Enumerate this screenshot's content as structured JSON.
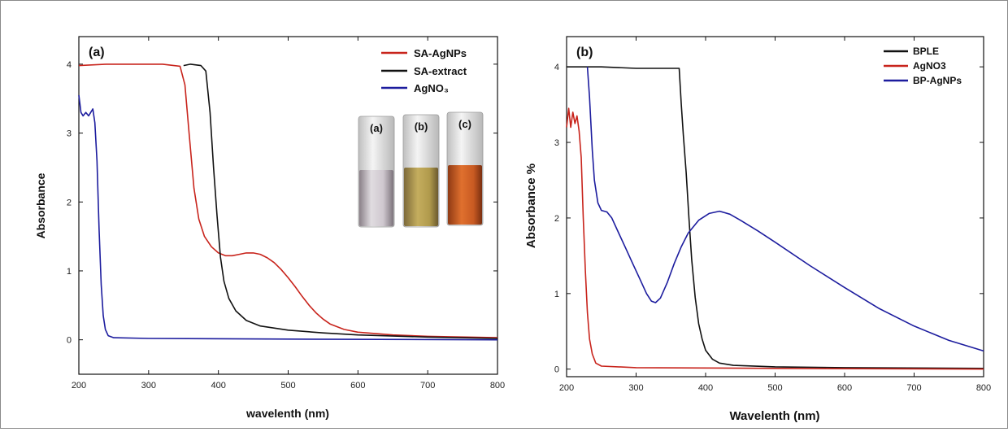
{
  "colors": {
    "red": "#c8241c",
    "black": "#111111",
    "blue": "#1c1c9e"
  },
  "chart_data": [
    {
      "type": "line",
      "panel_label": "(a)",
      "xlabel": "wavelenth (nm)",
      "ylabel": "Absorbance",
      "xlim": [
        200,
        800
      ],
      "ylim": [
        -0.5,
        4.4
      ],
      "xticks": [
        "200",
        "300",
        "400",
        "500",
        "600",
        "700",
        "800"
      ],
      "yticks": [
        "0",
        "1",
        "2",
        "3",
        "4"
      ],
      "legend_position": "top-right",
      "series": [
        {
          "name": "SA-AgNPs",
          "color": "#c8241c",
          "points": [
            [
              200,
              3.98
            ],
            [
              240,
              4.0
            ],
            [
              280,
              4.0
            ],
            [
              320,
              4.0
            ],
            [
              345,
              3.97
            ],
            [
              352,
              3.7
            ],
            [
              358,
              3.0
            ],
            [
              365,
              2.2
            ],
            [
              372,
              1.75
            ],
            [
              380,
              1.5
            ],
            [
              390,
              1.35
            ],
            [
              400,
              1.26
            ],
            [
              410,
              1.22
            ],
            [
              420,
              1.22
            ],
            [
              430,
              1.24
            ],
            [
              440,
              1.26
            ],
            [
              450,
              1.26
            ],
            [
              460,
              1.24
            ],
            [
              470,
              1.19
            ],
            [
              480,
              1.12
            ],
            [
              490,
              1.02
            ],
            [
              500,
              0.9
            ],
            [
              510,
              0.77
            ],
            [
              520,
              0.63
            ],
            [
              530,
              0.5
            ],
            [
              540,
              0.39
            ],
            [
              550,
              0.3
            ],
            [
              560,
              0.23
            ],
            [
              580,
              0.15
            ],
            [
              600,
              0.11
            ],
            [
              650,
              0.07
            ],
            [
              700,
              0.05
            ],
            [
              800,
              0.03
            ]
          ]
        },
        {
          "name": "SA-extract",
          "color": "#111111",
          "points": [
            [
              350,
              3.98
            ],
            [
              360,
              4.0
            ],
            [
              375,
              3.98
            ],
            [
              382,
              3.9
            ],
            [
              388,
              3.3
            ],
            [
              393,
              2.5
            ],
            [
              398,
              1.8
            ],
            [
              403,
              1.2
            ],
            [
              408,
              0.85
            ],
            [
              415,
              0.6
            ],
            [
              425,
              0.42
            ],
            [
              440,
              0.28
            ],
            [
              460,
              0.2
            ],
            [
              500,
              0.14
            ],
            [
              550,
              0.1
            ],
            [
              600,
              0.07
            ],
            [
              700,
              0.04
            ],
            [
              800,
              0.02
            ]
          ]
        },
        {
          "name": "AgNO₃",
          "color": "#1c1c9e",
          "points": [
            [
              200,
              3.55
            ],
            [
              203,
              3.3
            ],
            [
              206,
              3.25
            ],
            [
              210,
              3.3
            ],
            [
              214,
              3.25
            ],
            [
              217,
              3.3
            ],
            [
              220,
              3.35
            ],
            [
              223,
              3.15
            ],
            [
              226,
              2.6
            ],
            [
              229,
              1.6
            ],
            [
              232,
              0.8
            ],
            [
              235,
              0.35
            ],
            [
              238,
              0.15
            ],
            [
              242,
              0.06
            ],
            [
              250,
              0.03
            ],
            [
              300,
              0.02
            ],
            [
              500,
              0.01
            ],
            [
              800,
              0.0
            ]
          ]
        }
      ],
      "inset": {
        "labels": [
          "(a)",
          "(b)",
          "(c)"
        ]
      }
    },
    {
      "type": "line",
      "panel_label": "(b)",
      "xlabel": "Wavelenth (nm)",
      "ylabel": "Absorbance %",
      "xlim": [
        200,
        800
      ],
      "ylim": [
        -0.1,
        4.4
      ],
      "xticks": [
        "200",
        "300",
        "400",
        "500",
        "600",
        "700",
        "800"
      ],
      "yticks": [
        "0",
        "1",
        "2",
        "3",
        "4"
      ],
      "legend_position": "top-right",
      "series": [
        {
          "name": "BPLE",
          "color": "#111111",
          "points": [
            [
              200,
              4.0
            ],
            [
              250,
              4.0
            ],
            [
              300,
              3.98
            ],
            [
              340,
              3.98
            ],
            [
              362,
              3.98
            ],
            [
              365,
              3.5
            ],
            [
              368,
              3.1
            ],
            [
              372,
              2.6
            ],
            [
              376,
              2.0
            ],
            [
              380,
              1.45
            ],
            [
              385,
              0.95
            ],
            [
              390,
              0.6
            ],
            [
              395,
              0.4
            ],
            [
              400,
              0.25
            ],
            [
              410,
              0.13
            ],
            [
              420,
              0.08
            ],
            [
              440,
              0.05
            ],
            [
              500,
              0.03
            ],
            [
              600,
              0.02
            ],
            [
              800,
              0.01
            ]
          ]
        },
        {
          "name": "AgNO3",
          "color": "#c8241c",
          "points": [
            [
              200,
              3.2
            ],
            [
              203,
              3.45
            ],
            [
              206,
              3.2
            ],
            [
              209,
              3.4
            ],
            [
              212,
              3.25
            ],
            [
              215,
              3.35
            ],
            [
              218,
              3.15
            ],
            [
              221,
              2.8
            ],
            [
              224,
              2.0
            ],
            [
              227,
              1.3
            ],
            [
              230,
              0.75
            ],
            [
              233,
              0.4
            ],
            [
              237,
              0.2
            ],
            [
              242,
              0.08
            ],
            [
              250,
              0.04
            ],
            [
              300,
              0.02
            ],
            [
              500,
              0.01
            ],
            [
              800,
              0.0
            ]
          ]
        },
        {
          "name": "BP-AgNPs",
          "color": "#1c1c9e",
          "points": [
            [
              230,
              4.0
            ],
            [
              233,
              3.6
            ],
            [
              237,
              2.9
            ],
            [
              240,
              2.5
            ],
            [
              245,
              2.2
            ],
            [
              250,
              2.1
            ],
            [
              258,
              2.08
            ],
            [
              265,
              2.0
            ],
            [
              275,
              1.8
            ],
            [
              285,
              1.6
            ],
            [
              295,
              1.4
            ],
            [
              305,
              1.2
            ],
            [
              315,
              1.0
            ],
            [
              322,
              0.9
            ],
            [
              328,
              0.88
            ],
            [
              335,
              0.94
            ],
            [
              345,
              1.15
            ],
            [
              355,
              1.4
            ],
            [
              365,
              1.62
            ],
            [
              375,
              1.8
            ],
            [
              390,
              1.97
            ],
            [
              405,
              2.06
            ],
            [
              420,
              2.09
            ],
            [
              435,
              2.05
            ],
            [
              450,
              1.97
            ],
            [
              475,
              1.83
            ],
            [
              500,
              1.68
            ],
            [
              550,
              1.37
            ],
            [
              600,
              1.08
            ],
            [
              650,
              0.8
            ],
            [
              700,
              0.57
            ],
            [
              750,
              0.38
            ],
            [
              800,
              0.24
            ]
          ]
        }
      ]
    }
  ]
}
